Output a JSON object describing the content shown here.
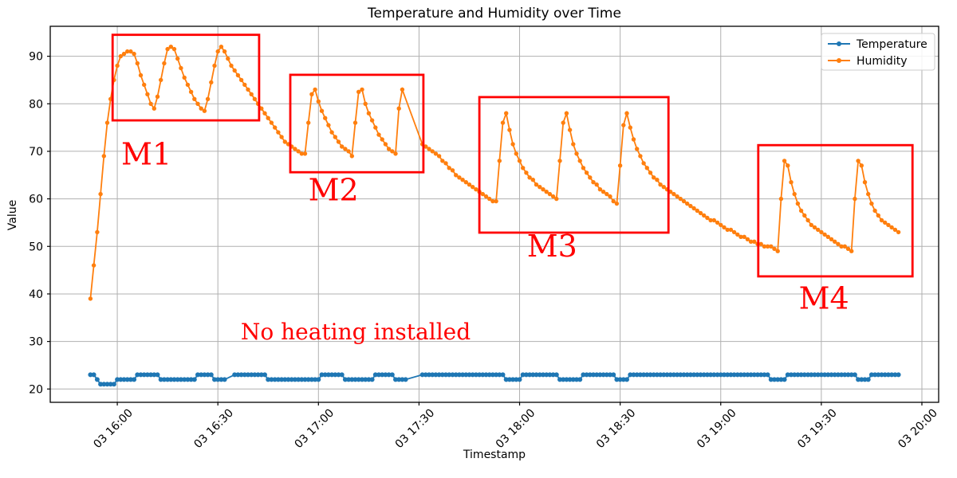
{
  "chart_data": {
    "type": "line",
    "title": "Temperature and Humidity over Time",
    "xlabel": "Timestamp",
    "ylabel": "Value",
    "grid": true,
    "background": "#ffffff",
    "grid_color": "#b0b0b0",
    "spine_color": "#000000",
    "x_axis": {
      "unit": "minutes relative to day 03 16:00",
      "min_offset_min": -20,
      "max_offset_min": 245,
      "ticks": [
        {
          "offset_min": 0,
          "label": "03 16:00"
        },
        {
          "offset_min": 30,
          "label": "03 16:30"
        },
        {
          "offset_min": 60,
          "label": "03 17:00"
        },
        {
          "offset_min": 90,
          "label": "03 17:30"
        },
        {
          "offset_min": 120,
          "label": "03 18:00"
        },
        {
          "offset_min": 150,
          "label": "03 18:30"
        },
        {
          "offset_min": 180,
          "label": "03 19:00"
        },
        {
          "offset_min": 210,
          "label": "03 19:30"
        },
        {
          "offset_min": 240,
          "label": "03 20:00"
        }
      ]
    },
    "y_axis": {
      "min": 17.2,
      "max": 96.3,
      "ticks": [
        20,
        30,
        40,
        50,
        60,
        70,
        80,
        90
      ]
    },
    "legend": {
      "position": "upper right",
      "entries": [
        "Temperature",
        "Humidity"
      ]
    },
    "series": [
      {
        "name": "Temperature",
        "color": "#1f77b4",
        "start_offset_min": -8,
        "interval_min": 1,
        "values": [
          23,
          23,
          22,
          21,
          21,
          21,
          21,
          21,
          22,
          22,
          22,
          22,
          22,
          22,
          23,
          23,
          23,
          23,
          23,
          23,
          23,
          22,
          22,
          22,
          22,
          22,
          22,
          22,
          22,
          22,
          22,
          22,
          23,
          23,
          23,
          23,
          23,
          22,
          22,
          22,
          22,
          null,
          null,
          23,
          23,
          23,
          23,
          23,
          23,
          23,
          23,
          23,
          23,
          22,
          22,
          22,
          22,
          22,
          22,
          22,
          22,
          22,
          22,
          22,
          22,
          22,
          22,
          22,
          22,
          23,
          23,
          23,
          23,
          23,
          23,
          23,
          22,
          22,
          22,
          22,
          22,
          22,
          22,
          22,
          22,
          23,
          23,
          23,
          23,
          23,
          23,
          22,
          22,
          22,
          22,
          null,
          null,
          null,
          null,
          23,
          23,
          23,
          23,
          23,
          23,
          23,
          23,
          23,
          23,
          23,
          23,
          23,
          23,
          23,
          23,
          23,
          23,
          23,
          23,
          23,
          23,
          23,
          23,
          23,
          22,
          22,
          22,
          22,
          22,
          23,
          23,
          23,
          23,
          23,
          23,
          23,
          23,
          23,
          23,
          23,
          22,
          22,
          22,
          22,
          22,
          22,
          22,
          23,
          23,
          23,
          23,
          23,
          23,
          23,
          23,
          23,
          23,
          22,
          22,
          22,
          22,
          23,
          23,
          23,
          23,
          23,
          23,
          23,
          23,
          23,
          23,
          23,
          23,
          23,
          23,
          23,
          23,
          23,
          23,
          23,
          23,
          23,
          23,
          23,
          23,
          23,
          23,
          23,
          23,
          23,
          23,
          23,
          23,
          23,
          23,
          23,
          23,
          23,
          23,
          23,
          23,
          23,
          23,
          22,
          22,
          22,
          22,
          22,
          23,
          23,
          23,
          23,
          23,
          23,
          23,
          23,
          23,
          23,
          23,
          23,
          23,
          23,
          23,
          23,
          23,
          23,
          23,
          23,
          23,
          22,
          22,
          22,
          22,
          23,
          23,
          23,
          23,
          23,
          23,
          23,
          23,
          23
        ]
      },
      {
        "name": "Humidity",
        "color": "#ff7f0e",
        "start_offset_min": -8,
        "interval_min": 1,
        "values": [
          39,
          46,
          53,
          61,
          69,
          76,
          81,
          85,
          88,
          90,
          90.5,
          91,
          91,
          90.5,
          88.5,
          86,
          84,
          82,
          80,
          79,
          81.5,
          85,
          88.5,
          91.5,
          92,
          91.5,
          89.5,
          87.5,
          85.5,
          84,
          82.5,
          81,
          80,
          79,
          78.5,
          81,
          84.5,
          88,
          91,
          92,
          91,
          89.5,
          88,
          87,
          86,
          85,
          84,
          83,
          82,
          81,
          80,
          79,
          78,
          77,
          76,
          75,
          74,
          73,
          72,
          71.5,
          71,
          70.5,
          70,
          69.5,
          69.5,
          76,
          82,
          83,
          80.5,
          78.5,
          77,
          75.5,
          74,
          73,
          72,
          71,
          70.5,
          70,
          69,
          76,
          82.5,
          83,
          80,
          78,
          76.5,
          75,
          73.5,
          72.5,
          71.5,
          70.5,
          70,
          69.5,
          79,
          83,
          null,
          null,
          null,
          null,
          null,
          71.5,
          71,
          70.5,
          70,
          69.5,
          69,
          68,
          67.5,
          66.5,
          66,
          65,
          64.5,
          64,
          63.5,
          63,
          62.5,
          62,
          61.5,
          61,
          60.5,
          60,
          59.5,
          59.5,
          68,
          76,
          78,
          74.5,
          71.5,
          69.5,
          68,
          66.5,
          65.5,
          64.5,
          64,
          63,
          62.5,
          62,
          61.5,
          61,
          60.5,
          60,
          68,
          76,
          78,
          74.5,
          71.5,
          69.5,
          68,
          66.5,
          65.5,
          64.5,
          63.5,
          63,
          62,
          61.5,
          61,
          60.5,
          59.5,
          59,
          67,
          75.5,
          78,
          75,
          72.5,
          70.5,
          69,
          67.5,
          66.5,
          65.5,
          64.5,
          64,
          63,
          62.5,
          62,
          61.5,
          61,
          60.5,
          60,
          59.5,
          59,
          58.5,
          58,
          57.5,
          57,
          56.5,
          56,
          55.5,
          55.5,
          55,
          54.5,
          54,
          53.5,
          53.5,
          53,
          52.5,
          52,
          52,
          51.5,
          51,
          51,
          50.5,
          50.5,
          50,
          50,
          50,
          49.5,
          49,
          60,
          68,
          67,
          63.5,
          61,
          59,
          57.5,
          56.5,
          55.5,
          54.5,
          54,
          53.5,
          53,
          52.5,
          52,
          51.5,
          51,
          50.5,
          50,
          50,
          49.5,
          49,
          60,
          68,
          67,
          63.5,
          61,
          59,
          57.5,
          56.5,
          55.5,
          55,
          54.5,
          54,
          53.5,
          53
        ]
      }
    ],
    "annotations": {
      "color": "#ff0000",
      "boxes": [
        {
          "label": "M1",
          "t0": -1.4,
          "t1": 42.3,
          "v0": 76.5,
          "v1": 94.5,
          "label_t": 8.7,
          "label_v": 68.8
        },
        {
          "label": "M2",
          "t0": 51.6,
          "t1": 91.3,
          "v0": 65.6,
          "v1": 86.1,
          "label_t": 64.5,
          "label_v": 61.3
        },
        {
          "label": "M3",
          "t0": 108,
          "t1": 164.4,
          "v0": 52.9,
          "v1": 81.4,
          "label_t": 129.7,
          "label_v": 49.5
        },
        {
          "label": "M4",
          "t0": 191.2,
          "t1": 237.2,
          "v0": 43.7,
          "v1": 71.3,
          "label_t": 210.8,
          "label_v": 38.5
        }
      ],
      "note": {
        "text": "No heating installed",
        "t": 71.1,
        "v": 31.7
      }
    }
  }
}
